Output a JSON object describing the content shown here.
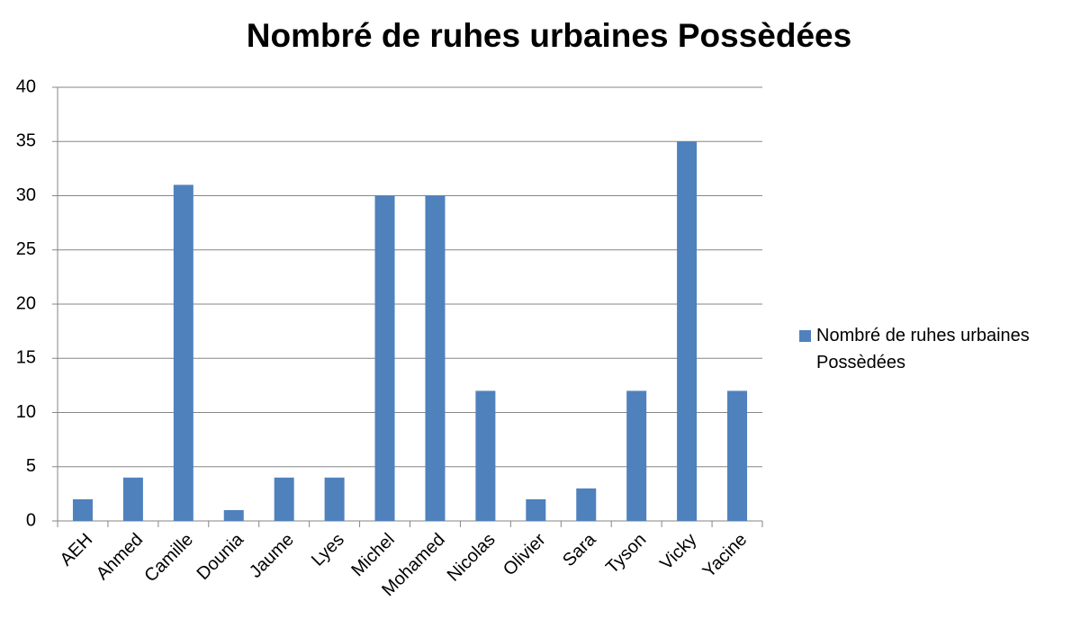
{
  "chart_data": {
    "type": "bar",
    "title": "Nombré de ruhes urbaines Possèdées",
    "categories": [
      "AEH",
      "Ahmed",
      "Camille",
      "Dounia",
      "Jaume",
      "Lyes",
      "Michel",
      "Mohamed",
      "Nicolas",
      "Olivier",
      "Sara",
      "Tyson",
      "Vicky",
      "Yacine"
    ],
    "series": [
      {
        "name": "Nombré de ruhes urbaines Possèdées",
        "color": "#4f81bd",
        "values": [
          2,
          4,
          31,
          1,
          4,
          4,
          30,
          30,
          12,
          2,
          3,
          12,
          35,
          12
        ]
      }
    ],
    "ylim": [
      0,
      40
    ],
    "yticks": [
      0,
      5,
      10,
      15,
      20,
      25,
      30,
      35,
      40
    ],
    "grid": true,
    "legend": "right"
  }
}
